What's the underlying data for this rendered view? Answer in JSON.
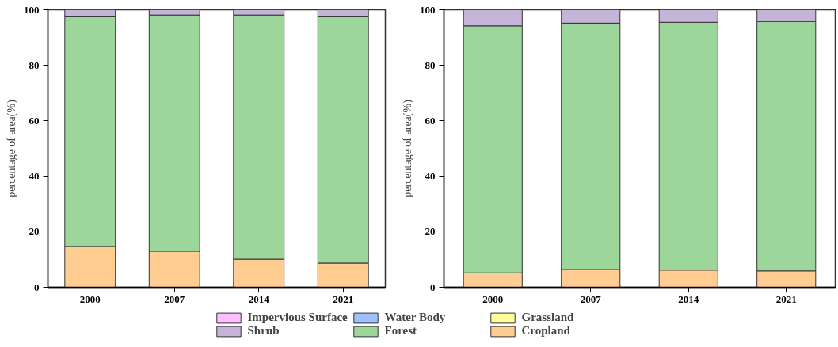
{
  "chart_data": [
    {
      "type": "bar",
      "stacked": true,
      "ylabel": "percentage of area(%)",
      "categories": [
        "2000",
        "2007",
        "2014",
        "2021"
      ],
      "ylim": [
        0,
        100
      ],
      "yticks": [
        0,
        20,
        40,
        60,
        80,
        100
      ],
      "grid": false,
      "legend": "bottom",
      "series": [
        {
          "name": "Cropland",
          "color": "#ffcc92",
          "values": [
            14.7,
            13.0,
            10.1,
            8.7
          ]
        },
        {
          "name": "Forest",
          "color": "#9dd69b",
          "values": [
            83.0,
            85.1,
            88.0,
            89.0
          ]
        },
        {
          "name": "Shrub",
          "color": "#c5b4d8",
          "values": [
            2.3,
            1.9,
            1.9,
            2.3
          ]
        },
        {
          "name": "Grassland",
          "color": "#ffff99",
          "values": [
            null,
            null,
            null,
            null
          ]
        },
        {
          "name": "Water Body",
          "color": "#9fbfff",
          "values": [
            null,
            null,
            null,
            null
          ]
        },
        {
          "name": "Impervious Surface",
          "color": "#ffbfff",
          "values": [
            null,
            null,
            null,
            null
          ]
        }
      ]
    },
    {
      "type": "bar",
      "stacked": true,
      "ylabel": "percentage of area(%)",
      "categories": [
        "2000",
        "2007",
        "2014",
        "2021"
      ],
      "ylim": [
        0,
        100
      ],
      "yticks": [
        0,
        20,
        40,
        60,
        80,
        100
      ],
      "grid": false,
      "series": [
        {
          "color": "#ffcc92",
          "values": [
            5.2,
            6.4,
            6.2,
            5.9
          ]
        },
        {
          "color": "#9dd69b",
          "values": [
            89.0,
            88.8,
            89.3,
            89.9
          ]
        },
        {
          "color": "#c5b4d8",
          "values": [
            5.8,
            4.8,
            4.5,
            4.2
          ]
        }
      ]
    }
  ]
}
